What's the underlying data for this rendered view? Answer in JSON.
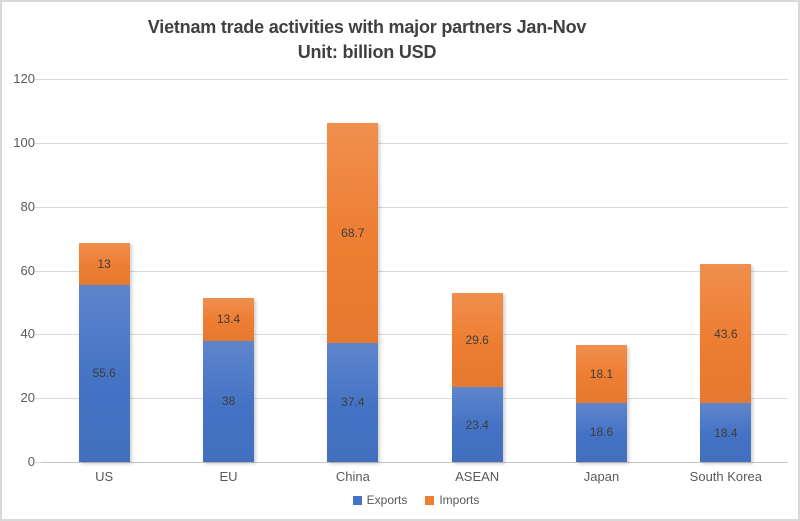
{
  "window": {
    "background": "#ffffff",
    "border_color": "#d9d9d9",
    "gridline_color": "#d9d9d9",
    "axis_line_color": "#c6c6c6"
  },
  "title": {
    "line1": "Vietnam trade activities with major partners Jan-Nov",
    "line2": "Unit: billion USD"
  },
  "chart_data": {
    "type": "bar",
    "stacked": true,
    "title": "Vietnam trade activities with major partners Jan-Nov",
    "subtitle": "Unit: billion USD",
    "categories": [
      "US",
      "EU",
      "China",
      "ASEAN",
      "Japan",
      "South Korea"
    ],
    "series": [
      {
        "name": "Exports",
        "color": "#4472c4",
        "values": [
          55.6,
          38,
          37.4,
          23.4,
          18.6,
          18.4
        ]
      },
      {
        "name": "Imports",
        "color": "#ed7d31",
        "values": [
          13,
          13.4,
          68.7,
          29.6,
          18.1,
          43.6
        ]
      }
    ],
    "xlabel": "",
    "ylabel": "",
    "ylim": [
      0,
      120
    ],
    "ytick_step": 20,
    "y_tick_labels": [
      "0",
      "20",
      "40",
      "60",
      "80",
      "100",
      "120"
    ],
    "grid": true,
    "data_labels": true,
    "legend_position": "bottom",
    "text_colors": {
      "title": "#404040",
      "axis_ticks": "#595959",
      "data_labels": "#3d3d3d",
      "legend": "#595959"
    }
  }
}
